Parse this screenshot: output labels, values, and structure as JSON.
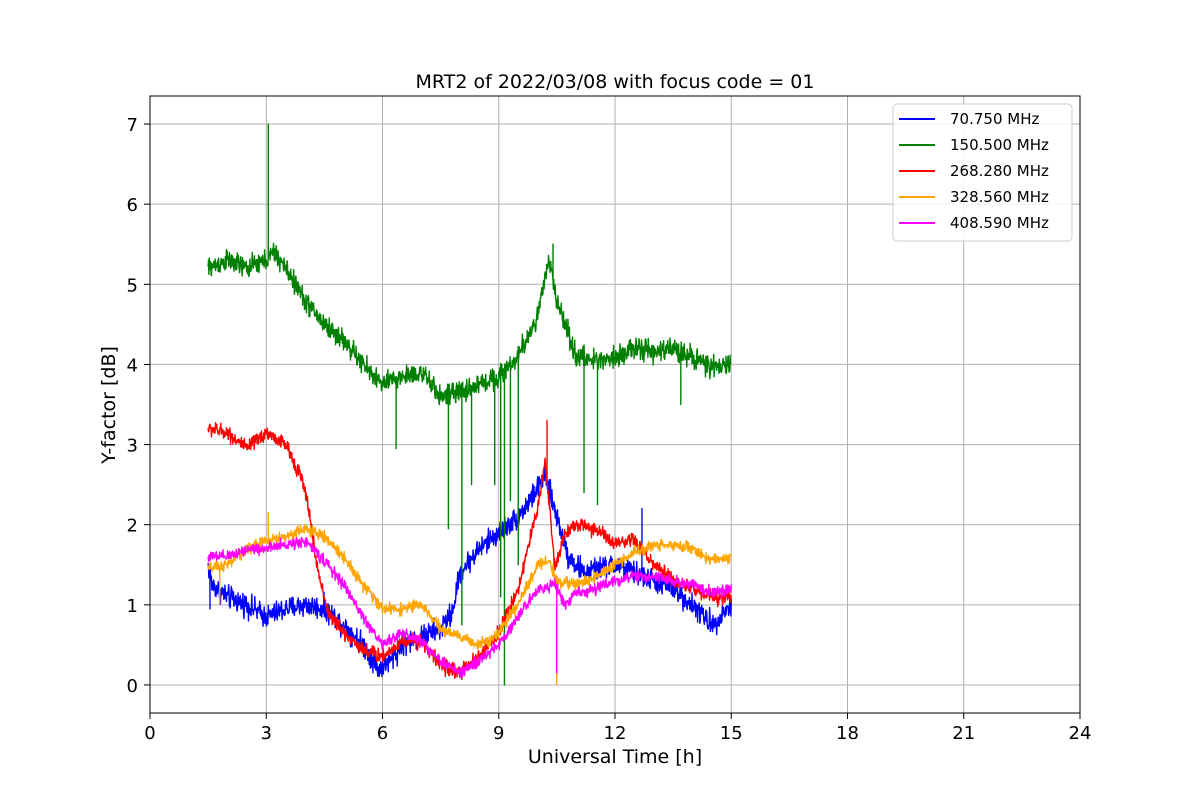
{
  "chart_data": {
    "type": "line",
    "title": "MRT2 of 2022/03/08 with focus code = 01",
    "xlabel": "Universal Time [h]",
    "ylabel": "Y-factor [dB]",
    "xlim": [
      0,
      24
    ],
    "ylim": [
      -0.35,
      7.35
    ],
    "xticks": [
      0,
      3,
      6,
      9,
      12,
      15,
      18,
      21,
      24
    ],
    "yticks": [
      0,
      1,
      2,
      3,
      4,
      5,
      6,
      7
    ],
    "grid": true,
    "legend_position": "top-right",
    "series": [
      {
        "name": "70.750 MHz",
        "color": "#0000ff",
        "noise": 0.14,
        "points": [
          [
            1.5,
            1.5
          ],
          [
            1.6,
            1.25
          ],
          [
            2.0,
            1.1
          ],
          [
            2.5,
            1.0
          ],
          [
            3.0,
            0.85
          ],
          [
            3.5,
            0.95
          ],
          [
            4.0,
            1.0
          ],
          [
            4.5,
            0.95
          ],
          [
            5.0,
            0.75
          ],
          [
            5.5,
            0.5
          ],
          [
            5.9,
            0.2
          ],
          [
            6.2,
            0.3
          ],
          [
            6.5,
            0.5
          ],
          [
            7.0,
            0.6
          ],
          [
            7.5,
            0.7
          ],
          [
            7.8,
            0.9
          ],
          [
            8.0,
            1.4
          ],
          [
            8.5,
            1.7
          ],
          [
            9.0,
            1.9
          ],
          [
            9.5,
            2.1
          ],
          [
            9.8,
            2.3
          ],
          [
            10.2,
            2.6
          ],
          [
            10.5,
            2.1
          ],
          [
            10.8,
            1.6
          ],
          [
            11.2,
            1.4
          ],
          [
            12.0,
            1.5
          ],
          [
            12.5,
            1.4
          ],
          [
            13.0,
            1.3
          ],
          [
            13.5,
            1.2
          ],
          [
            14.0,
            1.0
          ],
          [
            14.5,
            0.75
          ],
          [
            15.0,
            1.0
          ]
        ],
        "spikes": [
          [
            1.55,
            0.95
          ],
          [
            10.2,
            2.8
          ],
          [
            12.7,
            2.2
          ]
        ]
      },
      {
        "name": "150.500 MHz",
        "color": "#008000",
        "noise": 0.13,
        "points": [
          [
            1.5,
            5.2
          ],
          [
            2.0,
            5.3
          ],
          [
            2.5,
            5.2
          ],
          [
            3.0,
            5.3
          ],
          [
            3.2,
            5.4
          ],
          [
            3.5,
            5.2
          ],
          [
            4.0,
            4.8
          ],
          [
            4.5,
            4.5
          ],
          [
            5.0,
            4.3
          ],
          [
            5.5,
            4.0
          ],
          [
            6.0,
            3.75
          ],
          [
            6.5,
            3.85
          ],
          [
            7.0,
            3.9
          ],
          [
            7.5,
            3.6
          ],
          [
            8.0,
            3.65
          ],
          [
            8.5,
            3.75
          ],
          [
            9.0,
            3.85
          ],
          [
            9.5,
            4.1
          ],
          [
            10.0,
            4.6
          ],
          [
            10.3,
            5.3
          ],
          [
            10.5,
            4.8
          ],
          [
            11.0,
            4.1
          ],
          [
            11.5,
            4.05
          ],
          [
            12.0,
            4.1
          ],
          [
            12.5,
            4.2
          ],
          [
            13.0,
            4.15
          ],
          [
            13.5,
            4.2
          ],
          [
            14.0,
            4.1
          ],
          [
            14.5,
            3.95
          ],
          [
            15.0,
            4.0
          ]
        ],
        "spikes": [
          [
            3.05,
            7.0
          ],
          [
            6.35,
            2.95
          ],
          [
            7.7,
            1.95
          ],
          [
            8.05,
            0.75
          ],
          [
            8.3,
            2.5
          ],
          [
            8.9,
            2.5
          ],
          [
            9.05,
            1.1
          ],
          [
            9.15,
            0.0
          ],
          [
            9.3,
            2.3
          ],
          [
            9.5,
            1.5
          ],
          [
            10.4,
            5.5
          ],
          [
            11.2,
            2.4
          ],
          [
            11.55,
            2.25
          ],
          [
            13.7,
            3.5
          ]
        ]
      },
      {
        "name": "268.280 MHz",
        "color": "#ff0000",
        "noise": 0.09,
        "points": [
          [
            1.5,
            3.2
          ],
          [
            2.0,
            3.15
          ],
          [
            2.5,
            2.95
          ],
          [
            3.0,
            3.15
          ],
          [
            3.5,
            3.0
          ],
          [
            3.9,
            2.6
          ],
          [
            4.1,
            2.2
          ],
          [
            4.3,
            1.5
          ],
          [
            4.6,
            0.9
          ],
          [
            5.0,
            0.65
          ],
          [
            5.5,
            0.45
          ],
          [
            6.0,
            0.35
          ],
          [
            6.5,
            0.55
          ],
          [
            7.0,
            0.55
          ],
          [
            7.5,
            0.25
          ],
          [
            8.0,
            0.15
          ],
          [
            8.5,
            0.35
          ],
          [
            9.0,
            0.65
          ],
          [
            9.5,
            1.2
          ],
          [
            9.8,
            1.8
          ],
          [
            10.0,
            2.2
          ],
          [
            10.2,
            2.8
          ],
          [
            10.45,
            1.45
          ],
          [
            10.7,
            1.9
          ],
          [
            11.0,
            2.0
          ],
          [
            11.5,
            1.95
          ],
          [
            12.0,
            1.75
          ],
          [
            12.5,
            1.8
          ],
          [
            13.0,
            1.5
          ],
          [
            13.5,
            1.3
          ],
          [
            14.0,
            1.2
          ],
          [
            14.5,
            1.1
          ],
          [
            15.0,
            1.1
          ]
        ],
        "spikes": [
          [
            10.25,
            3.3
          ],
          [
            4.15,
            2.0
          ]
        ]
      },
      {
        "name": "328.560 MHz",
        "color": "#ffa500",
        "noise": 0.07,
        "points": [
          [
            1.5,
            1.45
          ],
          [
            2.0,
            1.5
          ],
          [
            2.5,
            1.7
          ],
          [
            3.0,
            1.8
          ],
          [
            3.5,
            1.85
          ],
          [
            4.0,
            1.95
          ],
          [
            4.5,
            1.85
          ],
          [
            5.0,
            1.6
          ],
          [
            5.5,
            1.25
          ],
          [
            6.0,
            0.95
          ],
          [
            6.5,
            0.95
          ],
          [
            7.0,
            1.0
          ],
          [
            7.5,
            0.7
          ],
          [
            8.0,
            0.6
          ],
          [
            8.5,
            0.5
          ],
          [
            9.0,
            0.65
          ],
          [
            9.5,
            1.0
          ],
          [
            10.0,
            1.5
          ],
          [
            10.3,
            1.55
          ],
          [
            10.5,
            1.3
          ],
          [
            11.0,
            1.25
          ],
          [
            11.5,
            1.35
          ],
          [
            12.0,
            1.5
          ],
          [
            12.5,
            1.65
          ],
          [
            13.0,
            1.75
          ],
          [
            13.5,
            1.75
          ],
          [
            14.0,
            1.7
          ],
          [
            14.5,
            1.55
          ],
          [
            15.0,
            1.6
          ]
        ],
        "spikes": [
          [
            1.8,
            1.0
          ],
          [
            3.05,
            2.15
          ],
          [
            10.5,
            0.0
          ]
        ]
      },
      {
        "name": "408.590 MHz",
        "color": "#ff00ff",
        "noise": 0.07,
        "points": [
          [
            1.5,
            1.6
          ],
          [
            2.0,
            1.6
          ],
          [
            2.5,
            1.7
          ],
          [
            3.0,
            1.7
          ],
          [
            3.5,
            1.75
          ],
          [
            4.0,
            1.8
          ],
          [
            4.5,
            1.55
          ],
          [
            5.0,
            1.25
          ],
          [
            5.5,
            0.85
          ],
          [
            6.0,
            0.5
          ],
          [
            6.5,
            0.65
          ],
          [
            7.0,
            0.55
          ],
          [
            7.5,
            0.3
          ],
          [
            8.0,
            0.15
          ],
          [
            8.5,
            0.3
          ],
          [
            9.0,
            0.5
          ],
          [
            9.5,
            0.85
          ],
          [
            10.0,
            1.2
          ],
          [
            10.45,
            1.25
          ],
          [
            10.7,
            1.0
          ],
          [
            11.0,
            1.15
          ],
          [
            11.5,
            1.2
          ],
          [
            12.0,
            1.3
          ],
          [
            12.5,
            1.35
          ],
          [
            13.0,
            1.35
          ],
          [
            13.5,
            1.3
          ],
          [
            14.0,
            1.25
          ],
          [
            14.5,
            1.15
          ],
          [
            15.0,
            1.2
          ]
        ],
        "spikes": [
          [
            10.5,
            0.15
          ]
        ]
      }
    ]
  }
}
